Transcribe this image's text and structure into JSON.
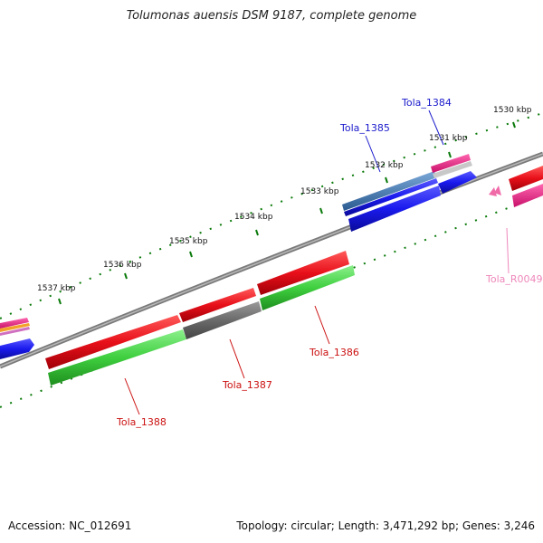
{
  "title": "Tolumonas auensis DSM 9187, complete genome",
  "footer": {
    "accession": "Accession: NC_012691",
    "info": "Topology: circular; Length: 3,471,292 bp; Genes: 3,246"
  },
  "colors": {
    "backbone": "#8a8a8a",
    "ruler": "#0a7a0a",
    "forward_cds": "#e8101a",
    "reverse_cds_green": "#3fcf3f",
    "pseudo_grey": "#6a6a6a",
    "blue_cds": "#1a1aee",
    "steel_cds": "#4a7ab0",
    "pink_cds": "#ee2288",
    "rna": "#f06aa8",
    "label_red": "#cc1111",
    "label_blue": "#1a1acc",
    "label_pink": "#ee88bb"
  },
  "ruler_labels": [
    "1530 kbp",
    "1531 kbp",
    "1532 kbp",
    "1533 kbp",
    "1534 kbp",
    "1535 kbp",
    "1536 kbp",
    "1537 kbp"
  ],
  "gene_labels": {
    "tola_1384": "Tola_1384",
    "tola_1385": "Tola_1385",
    "tola_1386": "Tola_1386",
    "tola_1387": "Tola_1387",
    "tola_1388": "Tola_1388",
    "tola_r0049": "Tola_R0049"
  }
}
